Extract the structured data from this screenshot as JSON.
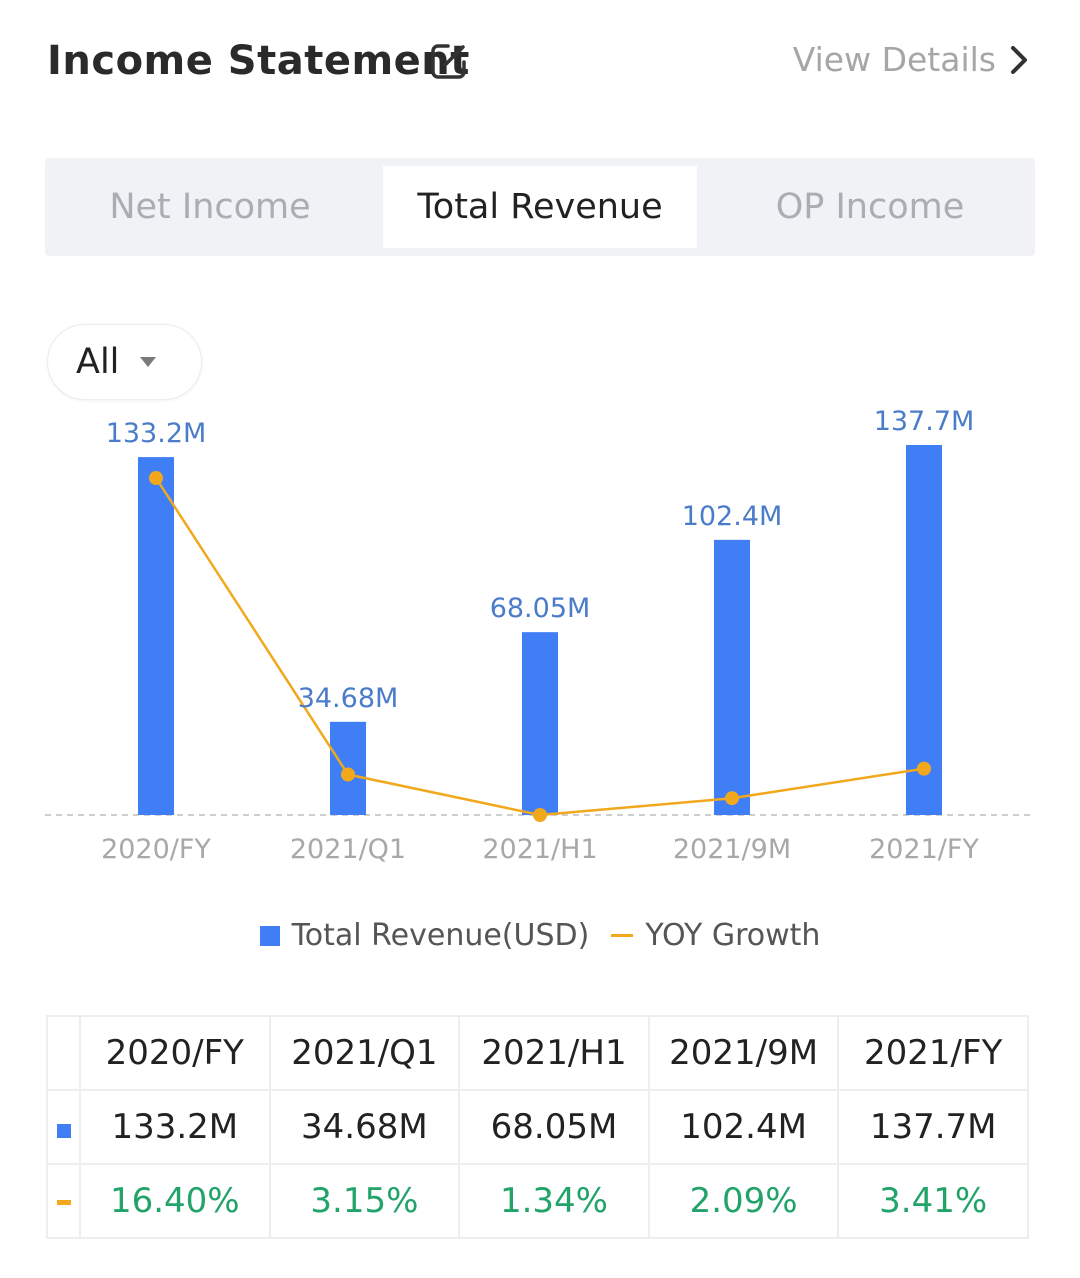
{
  "header": {
    "title": "Income Statement",
    "view_details": "View Details"
  },
  "tabs": [
    {
      "label": "Net Income",
      "active": false
    },
    {
      "label": "Total Revenue",
      "active": true
    },
    {
      "label": "OP Income",
      "active": false
    }
  ],
  "filter": {
    "selected": "All"
  },
  "colors": {
    "bar": "#3f7ef5",
    "line": "#f1a81d",
    "positive": "#21a36a",
    "bar_label": "#4a7cc9"
  },
  "chart_data": {
    "type": "bar",
    "categories": [
      "2020/FY",
      "2021/Q1",
      "2021/H1",
      "2021/9M",
      "2021/FY"
    ],
    "series": [
      {
        "name": "Total Revenue(USD)",
        "type": "bar",
        "values": [
          133.2,
          34.68,
          68.05,
          102.4,
          137.7
        ],
        "labels": [
          "133.2M",
          "34.68M",
          "68.05M",
          "102.4M",
          "137.7M"
        ]
      },
      {
        "name": "YOY Growth",
        "type": "line",
        "values": [
          16.4,
          3.15,
          1.34,
          2.09,
          3.41
        ]
      }
    ],
    "legend_position": "bottom"
  },
  "table": {
    "headers": [
      "2020/FY",
      "2021/Q1",
      "2021/H1",
      "2021/9M",
      "2021/FY"
    ],
    "revenue": [
      "133.2M",
      "34.68M",
      "68.05M",
      "102.4M",
      "137.7M"
    ],
    "growth": [
      "16.40%",
      "3.15%",
      "1.34%",
      "2.09%",
      "3.41%"
    ]
  }
}
